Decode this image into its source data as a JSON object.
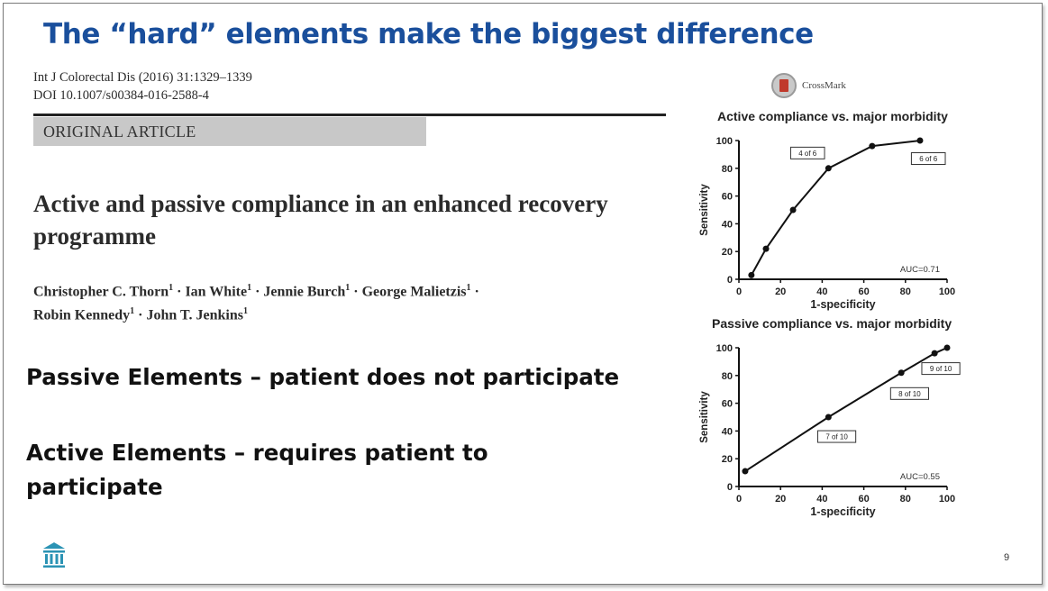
{
  "slide": {
    "title": "The “hard” elements make the biggest difference",
    "page_number": "9",
    "logo_icon": "institution-columns-icon",
    "accent_color": "#1a4f9c"
  },
  "paper": {
    "journal_line": "Int J Colorectal Dis (2016) 31:1329–1339",
    "doi_line": "DOI 10.1007/s00384-016-2588-4",
    "article_type": "ORIGINAL ARTICLE",
    "title": "Active and passive compliance in an enhanced recovery programme",
    "authors": [
      {
        "name": "Christopher C. Thorn",
        "sup": "1"
      },
      {
        "name": "Ian White",
        "sup": "1"
      },
      {
        "name": "Jennie Burch",
        "sup": "1"
      },
      {
        "name": "George Malietzis",
        "sup": "1"
      },
      {
        "name": "Robin Kennedy",
        "sup": "1"
      },
      {
        "name": "John T. Jenkins",
        "sup": "1"
      }
    ],
    "crossmark_label": "CrossMark"
  },
  "bullets": {
    "passive": "Passive Elements – patient does not participate",
    "active": "Active Elements – requires patient to participate"
  },
  "chart_data": [
    {
      "type": "line",
      "title": "Active compliance vs. major morbidity",
      "xlabel": "1-specificity",
      "ylabel": "Sensitivity",
      "xlim": [
        0,
        100
      ],
      "ylim": [
        0,
        100
      ],
      "xticks": [
        0,
        20,
        40,
        60,
        80,
        100
      ],
      "yticks": [
        0,
        20,
        40,
        60,
        80,
        100
      ],
      "grid": false,
      "auc_label": "AUC=0.71",
      "x": [
        6,
        13,
        26,
        43,
        64,
        87
      ],
      "y": [
        3,
        22,
        50,
        80,
        96,
        100
      ],
      "annotations": [
        {
          "text": "4 of 6",
          "x": 33,
          "y": 91
        },
        {
          "text": "6 of 6",
          "x": 91,
          "y": 87
        }
      ]
    },
    {
      "type": "line",
      "title": "Passive compliance vs. major morbidity",
      "xlabel": "1-specificity",
      "ylabel": "Sensitivity",
      "xlim": [
        0,
        100
      ],
      "ylim": [
        0,
        100
      ],
      "xticks": [
        0,
        20,
        40,
        60,
        80,
        100
      ],
      "yticks": [
        0,
        20,
        40,
        60,
        80,
        100
      ],
      "grid": false,
      "auc_label": "AUC=0.55",
      "x": [
        3,
        43,
        78,
        94,
        100
      ],
      "y": [
        11,
        50,
        82,
        96,
        100
      ],
      "annotations": [
        {
          "text": "7 of 10",
          "x": 47,
          "y": 36
        },
        {
          "text": "8 of 10",
          "x": 82,
          "y": 67
        },
        {
          "text": "9 of 10",
          "x": 97,
          "y": 85
        }
      ]
    }
  ]
}
